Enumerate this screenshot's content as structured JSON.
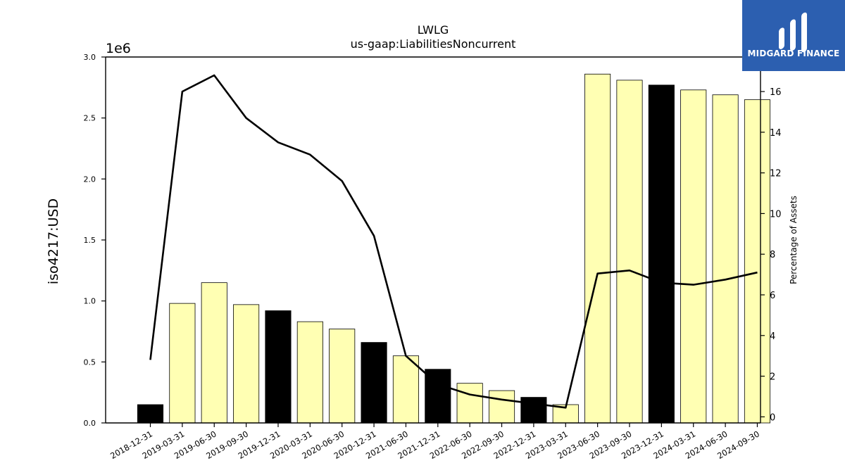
{
  "chart_data": {
    "type": "bar",
    "title": "LWLG",
    "subtitle": "us-gaap:LiabilitiesNoncurrent",
    "ylabel": "iso4217:USD",
    "y2label": "Percentage of Assets",
    "y_scale_label": "1e6",
    "ylim": [
      0,
      3000000
    ],
    "y2lim": [
      -0.3,
      17.7
    ],
    "yticks": [
      "0.0",
      "0.5",
      "1.0",
      "1.5",
      "2.0",
      "2.5",
      "3.0"
    ],
    "y2ticks": [
      "0",
      "2",
      "4",
      "6",
      "8",
      "10",
      "12",
      "14",
      "16"
    ],
    "categories": [
      "2018-12-31",
      "2019-03-31",
      "2019-06-30",
      "2019-09-30",
      "2019-12-31",
      "2020-03-31",
      "2020-06-30",
      "2020-12-31",
      "2021-06-30",
      "2021-12-31",
      "2022-06-30",
      "2022-09-30",
      "2022-12-31",
      "2023-03-31",
      "2023-06-30",
      "2023-09-30",
      "2023-12-31",
      "2024-03-31",
      "2024-06-30",
      "2024-09-30"
    ],
    "values": [
      150000,
      980000,
      1150000,
      970000,
      920000,
      830000,
      770000,
      660000,
      550000,
      440000,
      325000,
      265000,
      210000,
      150000,
      2860000,
      2810000,
      2770000,
      2730000,
      2690000,
      2650000
    ],
    "highlighted": [
      true,
      false,
      false,
      false,
      true,
      false,
      false,
      true,
      false,
      true,
      false,
      false,
      true,
      false,
      false,
      false,
      true,
      false,
      false,
      false
    ],
    "line_values": [
      2.8,
      16.0,
      16.8,
      14.7,
      13.5,
      12.9,
      11.6,
      8.9,
      3.0,
      1.6,
      1.1,
      0.85,
      0.65,
      0.45,
      7.05,
      7.2,
      6.6,
      6.5,
      6.75,
      7.1
    ],
    "colors": {
      "bar": "#ffffb3",
      "bar_highlight": "#000000",
      "line": "#000000",
      "axis": "#000000"
    },
    "grid": false
  },
  "logo": {
    "name": "midgard-logo-icon",
    "text": "MIDGARD FINANCE",
    "bg": "#2c5fb0"
  }
}
